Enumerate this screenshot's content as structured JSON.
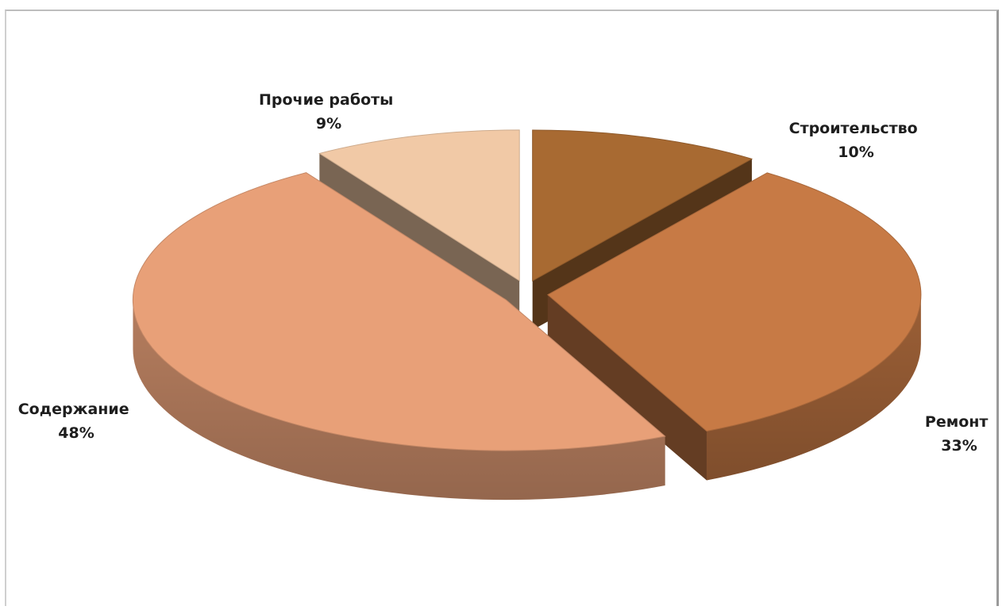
{
  "chart_data": {
    "type": "pie",
    "style": "3d-exploded",
    "title": "",
    "legend": "none",
    "slices": [
      {
        "label": "Строительство",
        "value": 10,
        "value_label": "10%",
        "color": "#a86a32"
      },
      {
        "label": "Ремонт",
        "value": 33,
        "value_label": "33%",
        "color": "#c77a45"
      },
      {
        "label": "Содержание",
        "value": 48,
        "value_label": "48%",
        "color": "#e8a078"
      },
      {
        "label": "Прочие работы",
        "value": 9,
        "value_label": "9%",
        "color": "#f1c9a6"
      }
    ]
  }
}
